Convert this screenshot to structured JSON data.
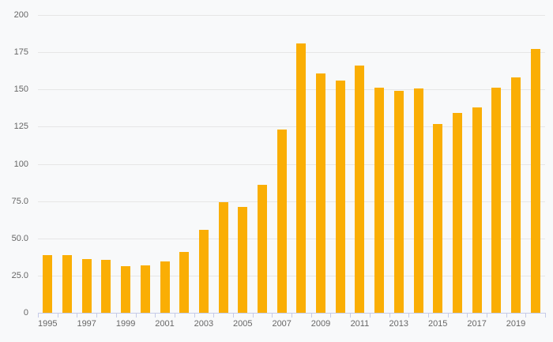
{
  "chart_data": {
    "type": "bar",
    "title": "",
    "xlabel": "",
    "ylabel": "",
    "categories": [
      "1995",
      "1996",
      "1997",
      "1998",
      "1999",
      "2000",
      "2001",
      "2002",
      "2003",
      "2004",
      "2005",
      "2006",
      "2007",
      "2008",
      "2009",
      "2010",
      "2011",
      "2012",
      "2013",
      "2014",
      "2015",
      "2016",
      "2017",
      "2018",
      "2019",
      "2020"
    ],
    "values": [
      39,
      38.5,
      36,
      35.5,
      31.5,
      32,
      34.5,
      41,
      55.5,
      74.5,
      71,
      86,
      123,
      181,
      161,
      156,
      166,
      151,
      149,
      150.5,
      127,
      134.5,
      138,
      151,
      158,
      177
    ],
    "ylim": [
      0,
      200
    ],
    "y_ticks": [
      0,
      25,
      50,
      75,
      100,
      125,
      150,
      175,
      200
    ],
    "y_tick_labels": [
      "0",
      "25.0",
      "50.0",
      "75.0",
      "100",
      "125",
      "150",
      "175",
      "200"
    ],
    "x_tick_labels": [
      "1995",
      "1997",
      "1999",
      "2001",
      "2003",
      "2005",
      "2007",
      "2009",
      "2011",
      "2013",
      "2015",
      "2017",
      "2019"
    ],
    "grid": true,
    "legend_position": "none"
  },
  "colors": {
    "background": "#f8f9fa",
    "bar": "#faae04",
    "gridline": "#e6e6e6",
    "axis": "#c5cbe8",
    "label": "#666666"
  }
}
